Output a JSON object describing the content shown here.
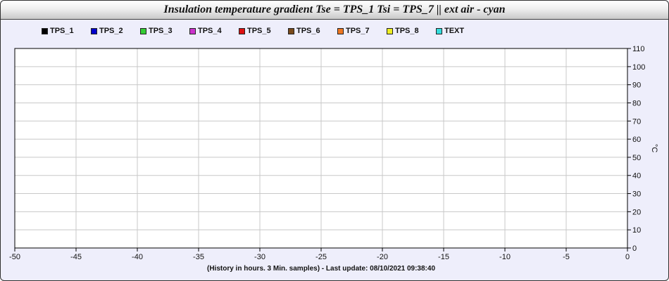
{
  "chart_data": {
    "type": "line",
    "title": "Insulation temperature gradient Tse = TPS_1 Tsi = TPS_7 || ext air - cyan",
    "xlabel": "(History in hours. 3 Min. samples) - Last update: 08/10/2021 09:38:40",
    "ylabel": "°C",
    "xlim": [
      -50,
      0
    ],
    "ylim": [
      0,
      110
    ],
    "x_ticks": [
      -50,
      -45,
      -40,
      -35,
      -30,
      -25,
      -20,
      -15,
      -10,
      -5,
      0
    ],
    "y_ticks": [
      0,
      10,
      20,
      30,
      40,
      50,
      60,
      70,
      80,
      90,
      100,
      110
    ],
    "grid": true,
    "legend_position": "top",
    "series": [
      {
        "name": "TPS_1",
        "color": "#000000",
        "values": []
      },
      {
        "name": "TPS_2",
        "color": "#0000cc",
        "values": []
      },
      {
        "name": "TPS_3",
        "color": "#33cc33",
        "values": []
      },
      {
        "name": "TPS_4",
        "color": "#cc33cc",
        "values": []
      },
      {
        "name": "TPS_5",
        "color": "#dd1111",
        "values": []
      },
      {
        "name": "TPS_6",
        "color": "#7a4a1a",
        "values": []
      },
      {
        "name": "TPS_7",
        "color": "#ee7722",
        "values": []
      },
      {
        "name": "TPS_8",
        "color": "#eeee22",
        "values": []
      },
      {
        "name": "TEXT",
        "color": "#33dddd",
        "values": []
      }
    ]
  }
}
